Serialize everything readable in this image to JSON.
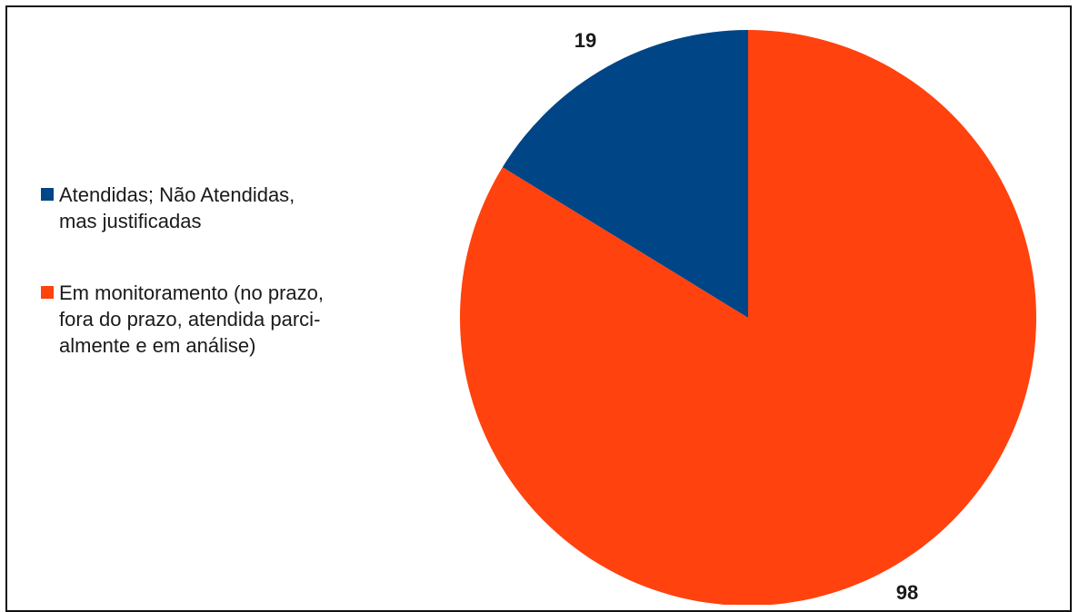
{
  "chart_data": {
    "type": "pie",
    "title": "",
    "categories": [
      "Atendidas; Não Atendidas,\nmas justificadas",
      "Em monitoramento (no prazo,\nfora do prazo, atendida parci-\nalmente e em análise)"
    ],
    "values": [
      19,
      98
    ],
    "data_labels": [
      "19",
      "98"
    ],
    "colors": [
      "#004586",
      "#ff420e"
    ],
    "legend_position": "left"
  }
}
